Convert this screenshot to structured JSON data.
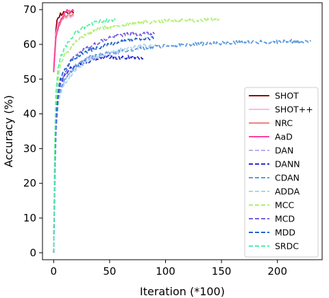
{
  "chart_data": {
    "type": "line",
    "xlabel": "Iteration (*100)",
    "ylabel": "Accuracy (%)",
    "xlim": [
      -10,
      240
    ],
    "ylim": [
      -2,
      72
    ],
    "xticks": [
      0,
      50,
      100,
      150,
      200
    ],
    "yticks": [
      0,
      10,
      20,
      30,
      40,
      50,
      60,
      70
    ],
    "grid": false,
    "legend_position": "lower right",
    "series": [
      {
        "name": "SHOT",
        "color": "#8b0000",
        "dash": "solid",
        "x": [
          0,
          1,
          2,
          3,
          4,
          6,
          8,
          10,
          12,
          14,
          16,
          18
        ],
        "y": [
          52,
          58,
          64,
          67,
          68,
          68.5,
          69,
          69,
          69.2,
          69,
          69.1,
          69
        ]
      },
      {
        "name": "SHOT++",
        "color": "#ffb6e6",
        "dash": "solid",
        "x": [
          0,
          1,
          2,
          4,
          6,
          8,
          10,
          12,
          14,
          16,
          18
        ],
        "y": [
          53,
          59,
          63,
          66,
          67,
          67.5,
          68,
          68,
          68.2,
          68,
          68.1
        ]
      },
      {
        "name": "NRC",
        "color": "#f08080",
        "dash": "solid",
        "x": [
          0,
          1,
          2,
          4,
          6,
          8,
          10,
          12,
          14,
          16,
          18
        ],
        "y": [
          53,
          58,
          62,
          65,
          66.5,
          67.5,
          68,
          68.2,
          68.4,
          68.3,
          68.4
        ]
      },
      {
        "name": "AaD",
        "color": "#ff3fa0",
        "dash": "solid",
        "x": [
          0,
          1,
          2,
          4,
          6,
          8,
          10,
          12,
          14,
          16,
          18
        ],
        "y": [
          52,
          57,
          62,
          65,
          67,
          68,
          69,
          69.5,
          69.5,
          69.6,
          69.5
        ]
      },
      {
        "name": "DAN",
        "color": "#b8b0f0",
        "dash": "dashed",
        "x": [
          0,
          1,
          2,
          4,
          6,
          10,
          15,
          20,
          25,
          30,
          40,
          50,
          55,
          60
        ],
        "y": [
          0,
          22,
          34,
          44,
          47,
          50,
          52,
          53.5,
          55,
          56,
          56.5,
          57,
          57.5,
          57.5
        ]
      },
      {
        "name": "DANN",
        "color": "#2a2ad0",
        "dash": "dashed",
        "x": [
          0,
          1,
          2,
          4,
          6,
          10,
          15,
          20,
          30,
          40,
          50,
          60,
          70,
          80
        ],
        "y": [
          0,
          25,
          38,
          46,
          49,
          51,
          53,
          54,
          55,
          56,
          56.5,
          56,
          56.5,
          56
        ]
      },
      {
        "name": "CDAN",
        "color": "#5a9ae0",
        "dash": "dashed",
        "x": [
          0,
          1,
          2,
          4,
          6,
          10,
          15,
          20,
          30,
          40,
          50,
          60,
          70,
          80,
          100,
          120,
          140,
          160,
          180,
          200,
          230
        ],
        "y": [
          0,
          24,
          36,
          44,
          47,
          50,
          52,
          54,
          56,
          57,
          57.5,
          58,
          58.5,
          59,
          59.5,
          60,
          60.3,
          60.5,
          60.7,
          60.8,
          61
        ]
      },
      {
        "name": "ADDA",
        "color": "#a8d4f0",
        "dash": "dashed",
        "x": [
          0,
          1,
          2,
          4,
          6,
          10,
          15,
          20,
          30,
          40,
          50,
          60,
          70,
          80,
          90
        ],
        "y": [
          0,
          22,
          34,
          42,
          46,
          49,
          51,
          53,
          55,
          56.5,
          57.5,
          58.5,
          59,
          59.5,
          59.5
        ]
      },
      {
        "name": "MCC",
        "color": "#b0f070",
        "dash": "dashed",
        "x": [
          0,
          1,
          2,
          4,
          6,
          10,
          15,
          20,
          30,
          40,
          50,
          60,
          70,
          80,
          90,
          100,
          110,
          120,
          130,
          140,
          148
        ],
        "y": [
          0,
          28,
          42,
          50,
          54,
          57,
          59,
          61,
          63,
          64.5,
          65,
          65.5,
          66,
          66.3,
          66.5,
          66.7,
          66.8,
          67,
          67,
          67.1,
          67.1
        ]
      },
      {
        "name": "MCD",
        "color": "#7060e0",
        "dash": "dashed",
        "x": [
          0,
          1,
          2,
          4,
          6,
          10,
          15,
          20,
          30,
          40,
          50,
          60,
          70,
          80,
          90
        ],
        "y": [
          0,
          24,
          36,
          45,
          49,
          52,
          55,
          57,
          59,
          60.5,
          62,
          62.8,
          63,
          63,
          63
        ]
      },
      {
        "name": "MDD",
        "color": "#2060d0",
        "dash": "dashed",
        "x": [
          0,
          1,
          2,
          4,
          6,
          10,
          15,
          20,
          30,
          40,
          50,
          60,
          70,
          80,
          90
        ],
        "y": [
          0,
          26,
          38,
          46,
          50,
          53,
          55,
          56.5,
          58,
          59,
          60,
          60.8,
          61.3,
          61.6,
          61.8
        ]
      },
      {
        "name": "SRDC",
        "color": "#50f0a0",
        "dash": "dashed",
        "x": [
          0,
          1,
          2,
          4,
          6,
          10,
          15,
          20,
          25,
          30,
          35,
          40,
          45,
          50,
          55
        ],
        "y": [
          0,
          32,
          46,
          53,
          56,
          59,
          61.5,
          63.5,
          64.5,
          65.5,
          66,
          66.5,
          66.8,
          67,
          67
        ]
      }
    ]
  }
}
